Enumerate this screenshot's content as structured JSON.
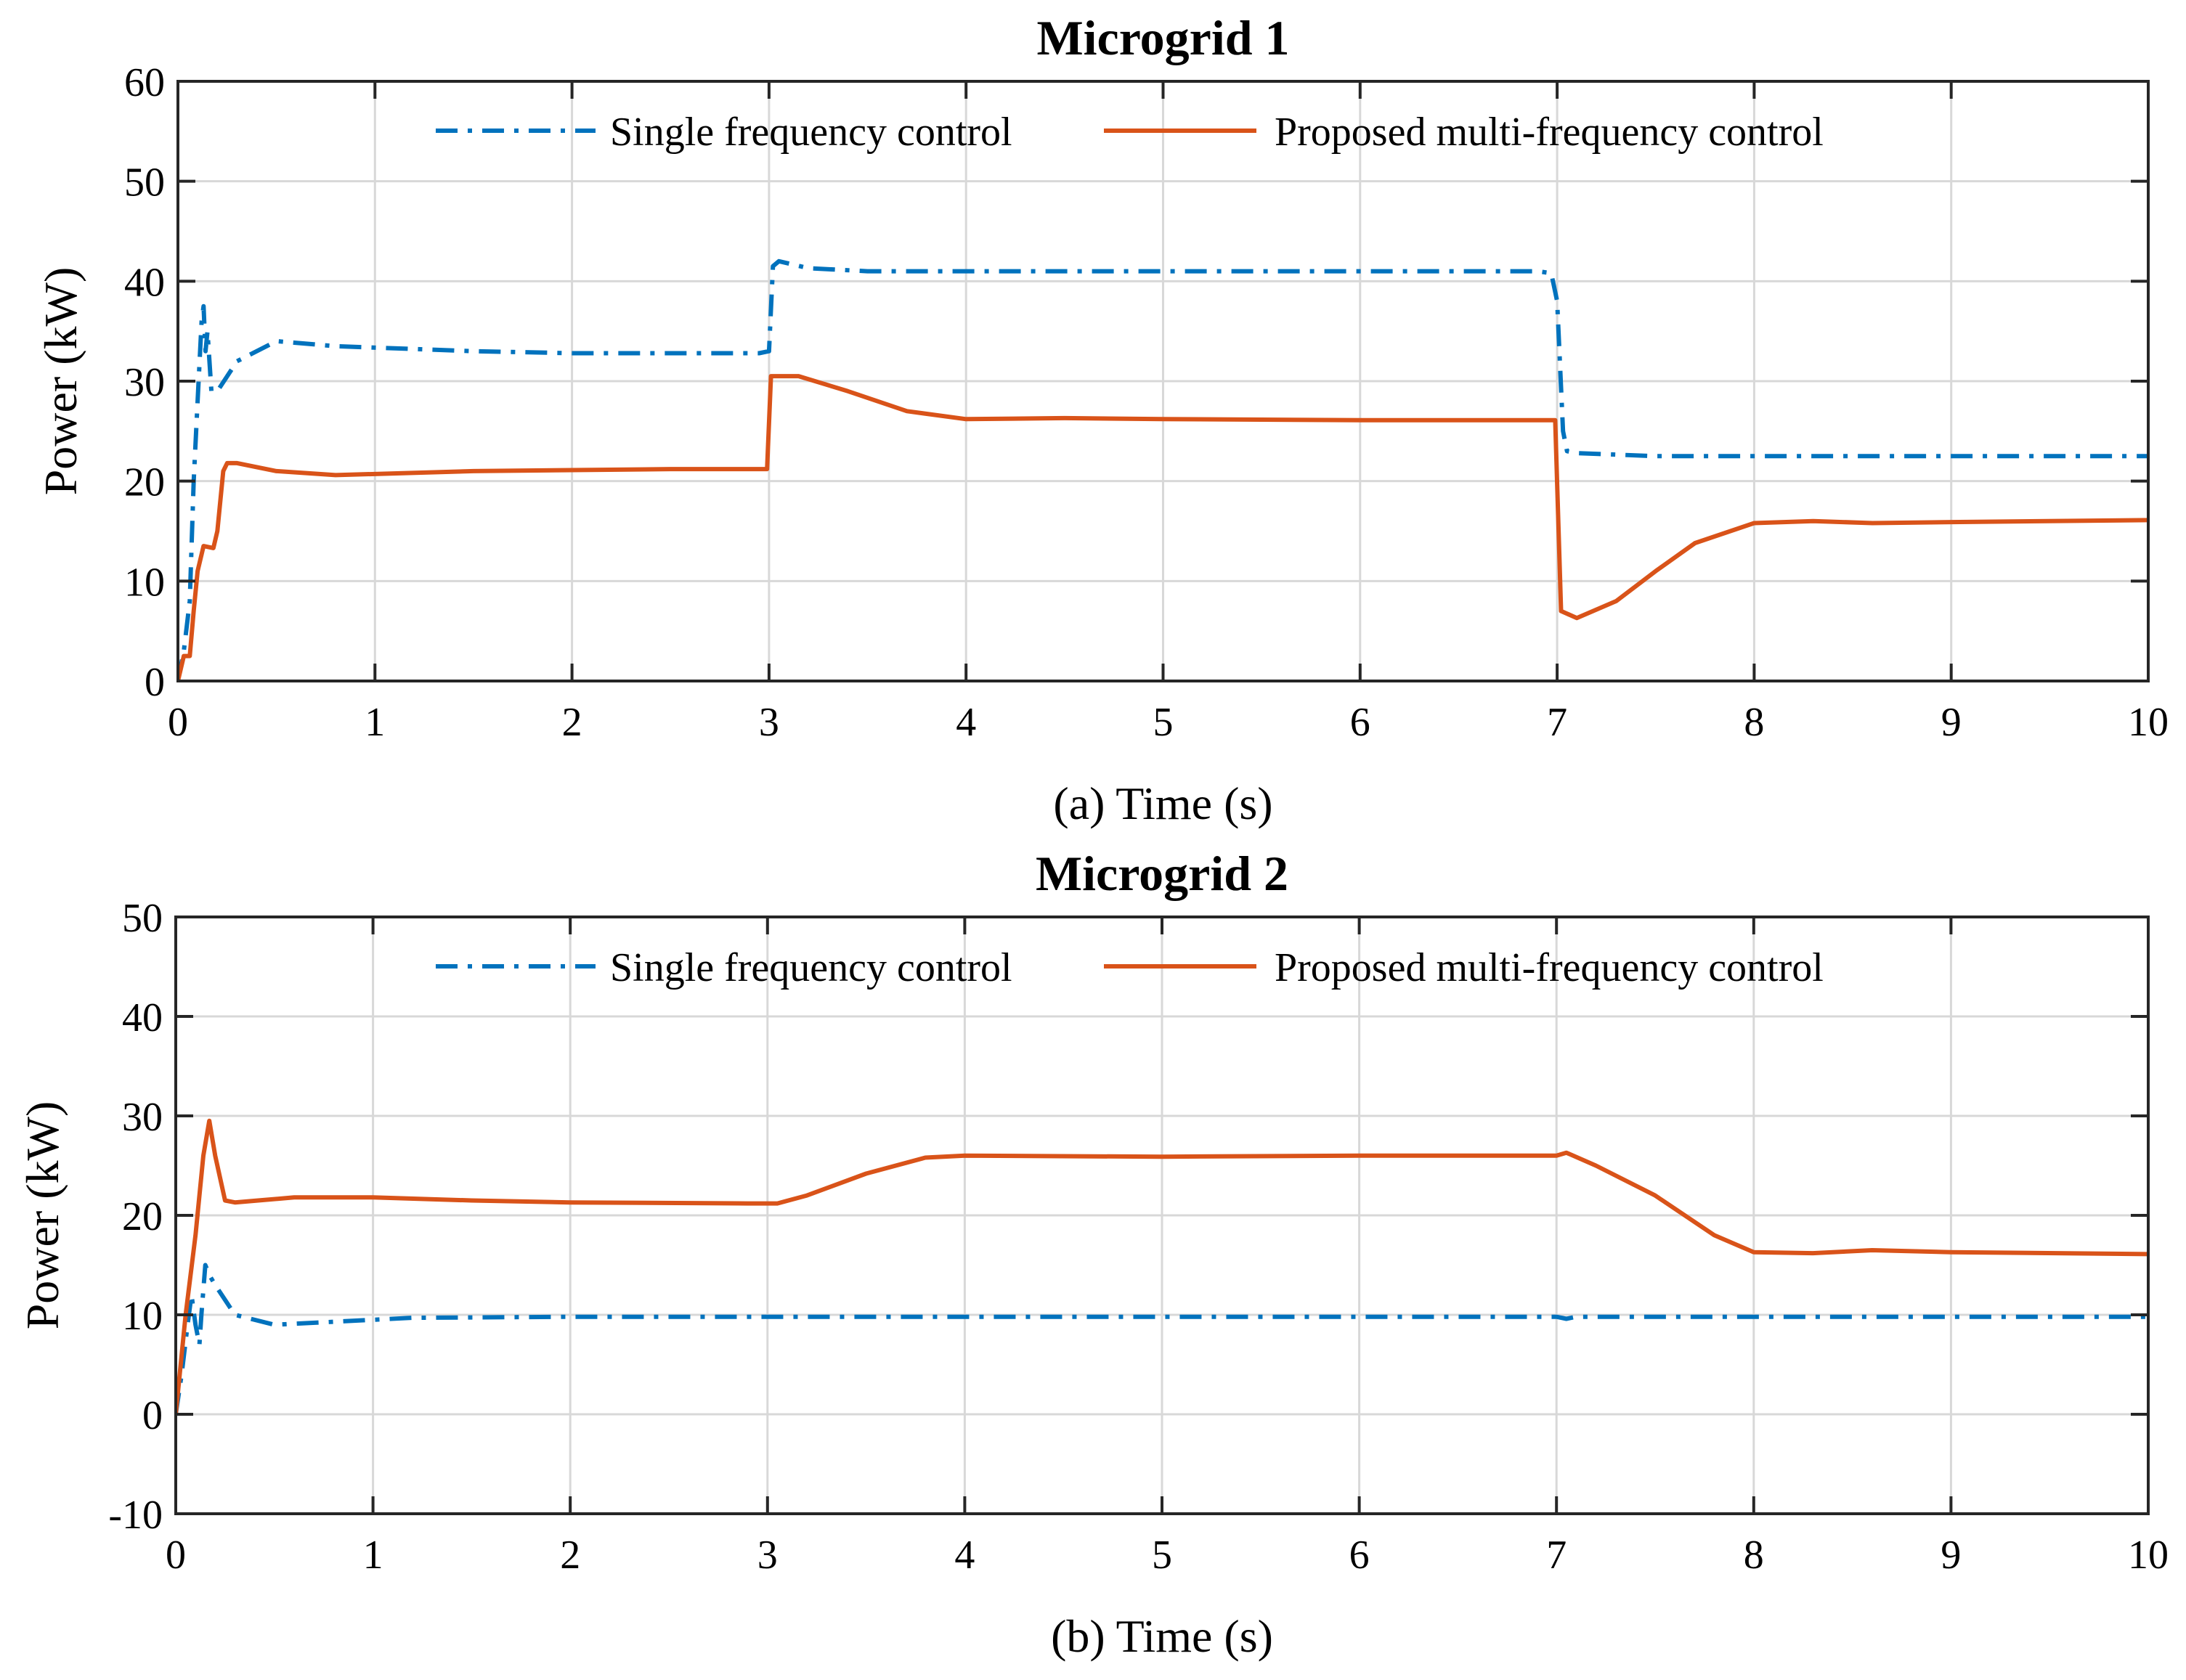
{
  "chart_data": [
    {
      "type": "line",
      "title": "Microgrid 1",
      "xlabel": "(a) Time (s)",
      "ylabel": "Power (kW)",
      "xlim": [
        0,
        10
      ],
      "ylim": [
        0,
        60
      ],
      "xticks": [
        "0",
        "1",
        "2",
        "3",
        "4",
        "5",
        "6",
        "7",
        "8",
        "9",
        "10"
      ],
      "yticks": [
        "0",
        "10",
        "20",
        "30",
        "40",
        "50",
        "60"
      ],
      "grid": true,
      "legend": "top-center",
      "series": [
        {
          "name": "Single frequency control",
          "color": "#0072BD",
          "style": "dashdot",
          "points": [
            [
              0,
              0
            ],
            [
              0.03,
              3
            ],
            [
              0.06,
              8
            ],
            [
              0.08,
              20
            ],
            [
              0.1,
              28
            ],
            [
              0.12,
              36
            ],
            [
              0.13,
              37.5
            ],
            [
              0.14,
              33
            ],
            [
              0.15,
              35
            ],
            [
              0.17,
              29
            ],
            [
              0.2,
              29
            ],
            [
              0.3,
              32
            ],
            [
              0.5,
              34
            ],
            [
              0.8,
              33.5
            ],
            [
              1.5,
              33
            ],
            [
              2,
              32.8
            ],
            [
              2.95,
              32.8
            ],
            [
              3.0,
              33
            ],
            [
              3.02,
              41.5
            ],
            [
              3.05,
              42
            ],
            [
              3.2,
              41.3
            ],
            [
              3.5,
              41
            ],
            [
              5,
              41
            ],
            [
              6.9,
              41
            ],
            [
              6.97,
              40.8
            ],
            [
              7.0,
              38
            ],
            [
              7.03,
              25
            ],
            [
              7.05,
              23
            ],
            [
              7.1,
              22.8
            ],
            [
              7.5,
              22.5
            ],
            [
              10,
              22.5
            ]
          ]
        },
        {
          "name": "Proposed multi-frequency control",
          "color": "#D95319",
          "style": "solid",
          "points": [
            [
              0,
              0
            ],
            [
              0.03,
              2.5
            ],
            [
              0.06,
              2.5
            ],
            [
              0.08,
              7
            ],
            [
              0.1,
              11
            ],
            [
              0.13,
              13.5
            ],
            [
              0.18,
              13.3
            ],
            [
              0.2,
              15
            ],
            [
              0.23,
              21
            ],
            [
              0.25,
              21.8
            ],
            [
              0.3,
              21.8
            ],
            [
              0.5,
              21
            ],
            [
              0.8,
              20.6
            ],
            [
              1.5,
              21
            ],
            [
              2.5,
              21.2
            ],
            [
              2.99,
              21.2
            ],
            [
              3.01,
              30.5
            ],
            [
              3.15,
              30.5
            ],
            [
              3.4,
              29
            ],
            [
              3.7,
              27
            ],
            [
              4,
              26.2
            ],
            [
              4.5,
              26.3
            ],
            [
              5,
              26.2
            ],
            [
              6,
              26.1
            ],
            [
              6.99,
              26.1
            ],
            [
              7.02,
              7
            ],
            [
              7.1,
              6.3
            ],
            [
              7.3,
              8
            ],
            [
              7.5,
              11
            ],
            [
              7.7,
              13.8
            ],
            [
              8,
              15.8
            ],
            [
              8.3,
              16
            ],
            [
              8.6,
              15.8
            ],
            [
              9,
              15.9
            ],
            [
              10,
              16.1
            ]
          ]
        }
      ]
    },
    {
      "type": "line",
      "title": "Microgrid 2",
      "xlabel": "(b) Time (s)",
      "ylabel": "Power (kW)",
      "xlim": [
        0,
        10
      ],
      "ylim": [
        -10,
        50
      ],
      "xticks": [
        "0",
        "1",
        "2",
        "3",
        "4",
        "5",
        "6",
        "7",
        "8",
        "9",
        "10"
      ],
      "yticks": [
        "-10",
        "0",
        "10",
        "20",
        "30",
        "40",
        "50"
      ],
      "grid": true,
      "legend": "top-center",
      "series": [
        {
          "name": "Single frequency control",
          "color": "#0072BD",
          "style": "dashdot",
          "points": [
            [
              0,
              0
            ],
            [
              0.03,
              4
            ],
            [
              0.06,
              9
            ],
            [
              0.08,
              12
            ],
            [
              0.1,
              9
            ],
            [
              0.12,
              7
            ],
            [
              0.13,
              10
            ],
            [
              0.15,
              15
            ],
            [
              0.17,
              14
            ],
            [
              0.2,
              13
            ],
            [
              0.3,
              10
            ],
            [
              0.5,
              9
            ],
            [
              0.8,
              9.3
            ],
            [
              1.2,
              9.7
            ],
            [
              2,
              9.8
            ],
            [
              3,
              9.8
            ],
            [
              7,
              9.8
            ],
            [
              7.05,
              9.6
            ],
            [
              7.1,
              9.8
            ],
            [
              10,
              9.8
            ]
          ]
        },
        {
          "name": "Proposed multi-frequency control",
          "color": "#D95319",
          "style": "solid",
          "points": [
            [
              0,
              0
            ],
            [
              0.05,
              10
            ],
            [
              0.1,
              18
            ],
            [
              0.14,
              26
            ],
            [
              0.17,
              29.5
            ],
            [
              0.2,
              26
            ],
            [
              0.25,
              21.5
            ],
            [
              0.3,
              21.3
            ],
            [
              0.6,
              21.8
            ],
            [
              1,
              21.8
            ],
            [
              1.5,
              21.5
            ],
            [
              2,
              21.3
            ],
            [
              2.9,
              21.2
            ],
            [
              3.05,
              21.2
            ],
            [
              3.2,
              22
            ],
            [
              3.5,
              24.2
            ],
            [
              3.8,
              25.8
            ],
            [
              4,
              26
            ],
            [
              5,
              25.9
            ],
            [
              6,
              26
            ],
            [
              7,
              26
            ],
            [
              7.05,
              26.3
            ],
            [
              7.2,
              25
            ],
            [
              7.5,
              22
            ],
            [
              7.8,
              18
            ],
            [
              8,
              16.3
            ],
            [
              8.3,
              16.2
            ],
            [
              8.6,
              16.5
            ],
            [
              9,
              16.3
            ],
            [
              10,
              16.1
            ]
          ]
        }
      ]
    }
  ]
}
